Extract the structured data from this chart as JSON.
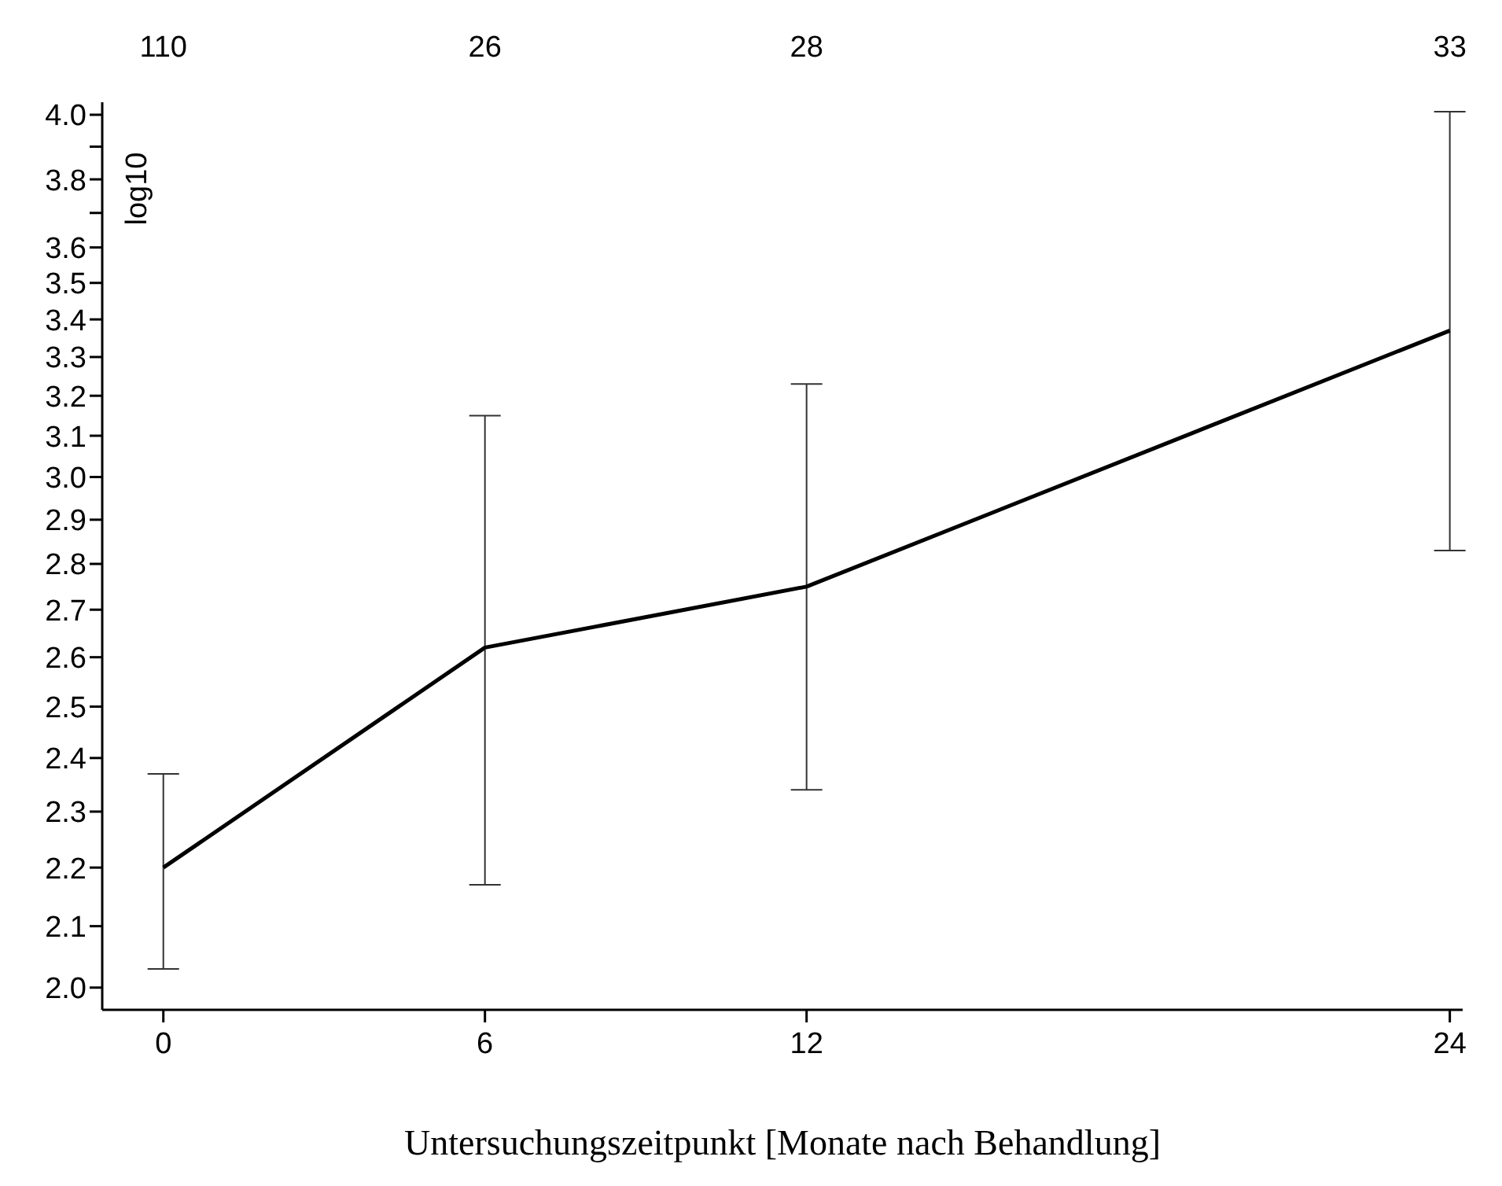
{
  "chart_data": {
    "type": "line",
    "xlabel": "Untersuchungszeitpunkt [Monate nach Behandlung]",
    "ylabel": "log10",
    "x": [
      0,
      6,
      12,
      24
    ],
    "series": [
      {
        "color": "#000000",
        "values": [
          2.2,
          2.62,
          2.75,
          3.37
        ],
        "errors": [
          [
            2.03,
            2.37
          ],
          [
            2.17,
            3.15
          ],
          [
            2.34,
            3.23
          ],
          [
            2.83,
            4.01
          ]
        ]
      }
    ],
    "xlim": [
      -1.14,
      24.24
    ],
    "xticks": [
      0,
      6,
      12,
      24
    ],
    "annotations": [
      "110",
      "26",
      "28",
      "33"
    ],
    "ylim": [
      1.965,
      4.04
    ],
    "log": "y",
    "yticks": [
      {
        "value": 2,
        "label": "2.0"
      },
      2.1,
      2.2,
      2.3,
      2.4,
      2.5,
      2.6,
      2.7,
      2.8,
      2.9,
      {
        "value": 3,
        "label": "3.0"
      },
      3.1,
      3.2,
      3.3,
      3.4,
      3.5,
      3.6,
      {
        "value": 3.7,
        "label": null
      },
      3.8,
      {
        "value": 3.9,
        "label": null
      },
      {
        "value": 4,
        "label": "4.0"
      }
    ],
    "grid": false,
    "legend": false,
    "marker": "none",
    "line_style": "solid"
  }
}
